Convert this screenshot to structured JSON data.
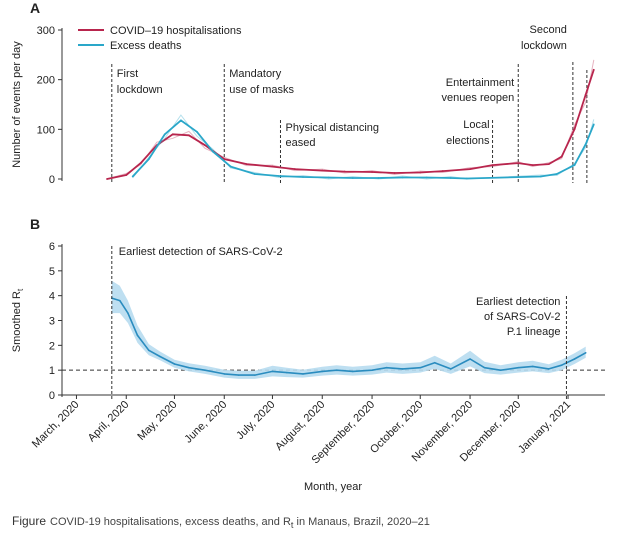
{
  "chart_data": [
    {
      "panel": "A",
      "type": "line",
      "ylabel": "Number of events per day",
      "ylim": [
        0,
        300
      ],
      "yticks": [
        0,
        100,
        200,
        300
      ],
      "x_unit": "date",
      "legend_position": "top-left",
      "series": [
        {
          "name": "COVID–19 hospitalisations",
          "color": "#b8254d",
          "x": [
            "2020-03-20",
            "2020-04-01",
            "2020-04-10",
            "2020-04-20",
            "2020-04-30",
            "2020-05-10",
            "2020-05-20",
            "2020-06-01",
            "2020-06-15",
            "2020-07-01",
            "2020-07-15",
            "2020-08-01",
            "2020-08-15",
            "2020-09-01",
            "2020-09-15",
            "2020-10-01",
            "2020-10-15",
            "2020-11-01",
            "2020-11-15",
            "2020-12-01",
            "2020-12-10",
            "2020-12-20",
            "2020-12-28",
            "2021-01-05",
            "2021-01-12",
            "2021-01-17"
          ],
          "values": [
            0,
            8,
            32,
            68,
            90,
            88,
            68,
            40,
            30,
            25,
            20,
            17,
            15,
            14,
            12,
            13,
            16,
            20,
            28,
            32,
            28,
            30,
            45,
            100,
            170,
            220
          ]
        },
        {
          "name": "Excess deaths",
          "color": "#2aa7c9",
          "x": [
            "2020-04-05",
            "2020-04-15",
            "2020-04-25",
            "2020-05-05",
            "2020-05-15",
            "2020-05-25",
            "2020-06-05",
            "2020-06-20",
            "2020-07-05",
            "2020-07-20",
            "2020-08-05",
            "2020-08-20",
            "2020-09-05",
            "2020-09-20",
            "2020-10-05",
            "2020-10-20",
            "2020-10-30",
            "2020-12-15",
            "2020-12-25",
            "2021-01-05",
            "2021-01-12",
            "2021-01-17"
          ],
          "values": [
            5,
            40,
            90,
            118,
            95,
            55,
            25,
            10,
            6,
            4,
            3,
            2,
            2,
            3,
            3,
            2,
            1,
            5,
            10,
            28,
            70,
            110
          ]
        }
      ],
      "events": [
        {
          "label": [
            "First",
            "lockdown"
          ],
          "x": "2020-03-23"
        },
        {
          "label": [
            "Mandatory",
            "use of masks"
          ],
          "x": "2020-06-01"
        },
        {
          "label": [
            "Physical distancing",
            "eased"
          ],
          "x": "2020-07-06"
        },
        {
          "label": [
            "Local",
            "elections"
          ],
          "x": "2020-11-15"
        },
        {
          "label": [
            "Entertainment",
            "venues reopen"
          ],
          "x": "2020-12-01"
        },
        {
          "label": [
            "Second",
            "lockdown"
          ],
          "x": "2021-01-04"
        }
      ]
    },
    {
      "panel": "B",
      "type": "area",
      "ylabel": "Smoothed R",
      "ylabel_subscript": "t",
      "ylim": [
        0,
        6
      ],
      "yticks": [
        0,
        1,
        2,
        3,
        4,
        5,
        6
      ],
      "reference_line": 1,
      "x_unit": "date",
      "series": [
        {
          "color": "#2a8cbf",
          "band_color": "#b7dcef",
          "x": [
            "2020-03-23",
            "2020-03-28",
            "2020-04-02",
            "2020-04-08",
            "2020-04-15",
            "2020-04-22",
            "2020-05-01",
            "2020-05-10",
            "2020-05-20",
            "2020-06-01",
            "2020-06-10",
            "2020-06-20",
            "2020-07-01",
            "2020-07-10",
            "2020-07-20",
            "2020-08-01",
            "2020-08-10",
            "2020-08-20",
            "2020-09-01",
            "2020-09-10",
            "2020-09-20",
            "2020-10-01",
            "2020-10-10",
            "2020-10-20",
            "2020-11-01",
            "2020-11-10",
            "2020-11-20",
            "2020-12-01",
            "2020-12-10",
            "2020-12-20",
            "2020-12-28",
            "2021-01-05",
            "2021-01-12"
          ],
          "values": [
            3.9,
            3.8,
            3.3,
            2.4,
            1.8,
            1.55,
            1.25,
            1.1,
            1.0,
            0.85,
            0.8,
            0.8,
            0.95,
            0.9,
            0.85,
            0.95,
            1.0,
            0.95,
            1.0,
            1.1,
            1.05,
            1.1,
            1.3,
            1.05,
            1.45,
            1.1,
            1.0,
            1.1,
            1.15,
            1.05,
            1.2,
            1.45,
            1.7
          ],
          "lower": [
            3.3,
            3.3,
            2.9,
            2.1,
            1.6,
            1.4,
            1.1,
            0.95,
            0.85,
            0.7,
            0.65,
            0.65,
            0.75,
            0.72,
            0.7,
            0.78,
            0.82,
            0.78,
            0.82,
            0.9,
            0.85,
            0.9,
            1.05,
            0.85,
            1.15,
            0.88,
            0.82,
            0.9,
            0.95,
            0.88,
            1.0,
            1.25,
            1.5
          ],
          "upper": [
            4.6,
            4.4,
            3.8,
            2.8,
            2.05,
            1.75,
            1.42,
            1.28,
            1.18,
            1.02,
            0.98,
            0.98,
            1.18,
            1.1,
            1.02,
            1.14,
            1.2,
            1.14,
            1.2,
            1.32,
            1.27,
            1.32,
            1.58,
            1.27,
            1.78,
            1.34,
            1.2,
            1.32,
            1.38,
            1.24,
            1.42,
            1.68,
            1.95
          ]
        }
      ],
      "events": [
        {
          "label": [
            "Earliest detection of SARS-CoV-2"
          ],
          "x": "2020-03-23"
        },
        {
          "label": [
            "Earliest detection",
            "of SARS-CoV-2",
            "P.1 lineage"
          ],
          "x": "2020-12-31"
        }
      ],
      "xlabel": "Month, year",
      "xticks": [
        {
          "label": "March, 2020",
          "x": "2020-03-01"
        },
        {
          "label": "April, 2020",
          "x": "2020-04-01"
        },
        {
          "label": "May, 2020",
          "x": "2020-05-01"
        },
        {
          "label": "June, 2020",
          "x": "2020-06-01"
        },
        {
          "label": "July, 2020",
          "x": "2020-07-01"
        },
        {
          "label": "August, 2020",
          "x": "2020-08-01"
        },
        {
          "label": "September, 2020",
          "x": "2020-09-01"
        },
        {
          "label": "October, 2020",
          "x": "2020-10-01"
        },
        {
          "label": "November, 2020",
          "x": "2020-11-01"
        },
        {
          "label": "December, 2020",
          "x": "2020-12-01"
        },
        {
          "label": "January, 2021",
          "x": "2021-01-01"
        }
      ]
    }
  ],
  "caption": {
    "figure_word": "Figure",
    "text": "COVID-19 hospitalisations, excess deaths, and R",
    "subscript": "t",
    "text_after": " in Manaus, Brazil, 2020–21"
  }
}
